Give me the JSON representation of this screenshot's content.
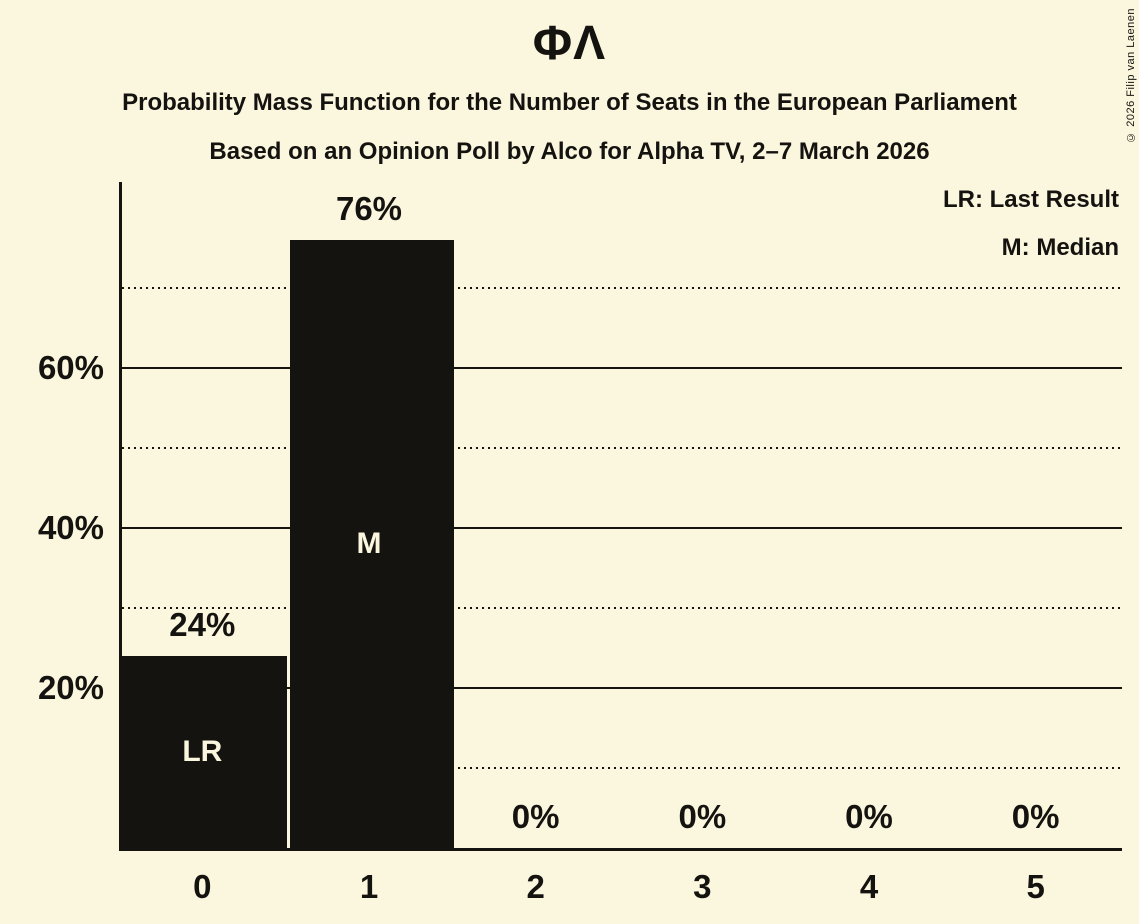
{
  "title": "ΦΛ",
  "subtitle1": "Probability Mass Function for the Number of Seats in the European Parliament",
  "subtitle2": "Based on an Opinion Poll by Alco for Alpha TV, 2–7 March 2026",
  "copyright": "© 2026 Filip van Laenen",
  "legend": {
    "lr": "LR: Last Result",
    "m": "M: Median"
  },
  "colors": {
    "background": "#FBF6DE",
    "bar": "#14130F",
    "text": "#14130F",
    "bar_label": "#FBF6DE",
    "gridline": "#14130F"
  },
  "chart_data": {
    "type": "bar",
    "title": "ΦΛ",
    "xlabel": "",
    "ylabel": "",
    "categories": [
      "0",
      "1",
      "2",
      "3",
      "4",
      "5"
    ],
    "values": [
      24,
      76,
      0,
      0,
      0,
      0
    ],
    "value_labels": [
      "24%",
      "76%",
      "0%",
      "0%",
      "0%",
      "0%"
    ],
    "bar_annotations": [
      "LR",
      "M",
      "",
      "",
      "",
      ""
    ],
    "ylim": [
      0,
      83.25
    ],
    "yticks": [
      {
        "value": 20,
        "label": "20%"
      },
      {
        "value": 40,
        "label": "40%"
      },
      {
        "value": 60,
        "label": "60%"
      }
    ],
    "gridlines": {
      "solid": [
        20,
        40,
        60
      ],
      "dotted": [
        10,
        30,
        50,
        70
      ]
    },
    "grid": true,
    "legend_position": "top-right",
    "legend_entries": [
      "LR: Last Result",
      "M: Median"
    ]
  }
}
